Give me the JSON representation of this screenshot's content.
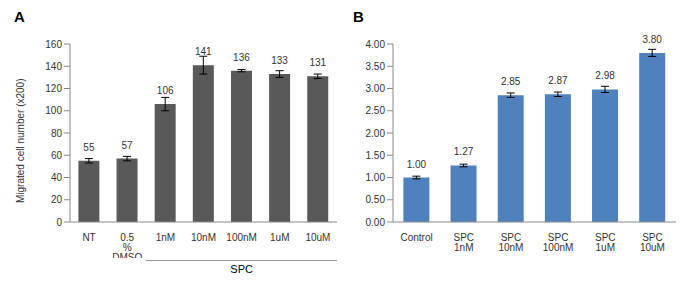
{
  "chart_data": [
    {
      "type": "bar",
      "title": "A",
      "y_label": "Migrated cell number (x200)",
      "categories": [
        "NT",
        "0.5 % DMSO",
        "1nM",
        "10nM",
        "100nM",
        "1uM",
        "10uM"
      ],
      "values": [
        55,
        57,
        106,
        141,
        136,
        133,
        131
      ],
      "errors": [
        2,
        2,
        6,
        8,
        1,
        3,
        2
      ],
      "color": "#595959",
      "ylim": [
        0,
        160
      ],
      "yticks": [
        0,
        20,
        40,
        60,
        80,
        100,
        120,
        140,
        160
      ],
      "grid": false,
      "data_labels": true,
      "group_label": {
        "text": "SPC",
        "categories": [
          "1nM",
          "10nM",
          "100nM",
          "1uM",
          "10uM"
        ]
      }
    },
    {
      "type": "bar",
      "title": "B",
      "categories": [
        "Control",
        "SPC 1nM",
        "SPC 10nM",
        "SPC 100nM",
        "SPC 1uM",
        "SPC 10uM"
      ],
      "values": [
        1.0,
        1.27,
        2.85,
        2.87,
        2.98,
        3.8
      ],
      "value_labels": [
        "1.00",
        "1.27",
        "2.85",
        "2.87",
        "2.98",
        "3.80"
      ],
      "errors": [
        0.03,
        0.03,
        0.05,
        0.05,
        0.07,
        0.08
      ],
      "color": "#4f81bd",
      "ylim": [
        0,
        4
      ],
      "yticks": [
        {
          "value": 0,
          "label": "0.00"
        },
        {
          "value": 0.5,
          "label": "0.50"
        },
        {
          "value": 1,
          "label": "1.00"
        },
        {
          "value": 1.5,
          "label": "1.50"
        },
        {
          "value": 2,
          "label": "2.00"
        },
        {
          "value": 2.5,
          "label": "2.50"
        },
        {
          "value": 3,
          "label": "3.00"
        },
        {
          "value": 3.5,
          "label": "3.50"
        },
        {
          "value": 4,
          "label": "4.00"
        }
      ],
      "grid": false,
      "data_labels": true
    }
  ]
}
